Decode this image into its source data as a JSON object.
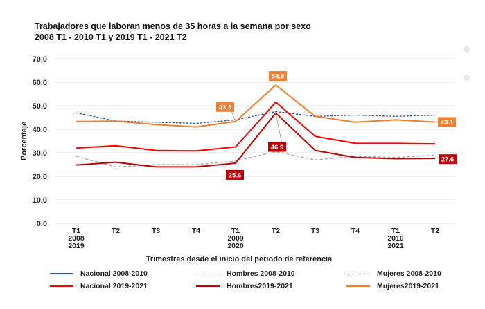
{
  "title_line1": "Trabajadores que laboran menos de 35 horas a la semana por sexo",
  "title_line2": "2008 T1 - 2010 T1 y 2019 T1 - 2021 T2",
  "chart_data": {
    "type": "line",
    "ylabel": "Porcentaje",
    "xlabel": "Trimestres desde el inicio del periodo de referencia",
    "ylim": [
      0,
      70
    ],
    "yticks": [
      "0.0",
      "10.0",
      "20.0",
      "30.0",
      "40.0",
      "50.0",
      "60.0",
      "70.0"
    ],
    "categories": [
      [
        "T1",
        "2008",
        "2019"
      ],
      [
        "T2"
      ],
      [
        "T3"
      ],
      [
        "T4"
      ],
      [
        "T1",
        "2009",
        "2020"
      ],
      [
        "T2"
      ],
      [
        "T3"
      ],
      [
        "T4"
      ],
      [
        "T1",
        "2010",
        "2021"
      ],
      [
        "T2"
      ]
    ],
    "series": [
      {
        "name": "Nacional 2008-2010",
        "color": "#1f4fd8",
        "dash": "solid",
        "values": [
          null,
          null,
          null,
          null,
          null,
          null,
          null,
          null,
          null,
          null
        ]
      },
      {
        "name": "Hombres  2008-2010",
        "color": "#a0a0a0",
        "dash": "dashed",
        "values": [
          28.5,
          24.0,
          25.0,
          25.0,
          26.5,
          30.5,
          27.0,
          28.5,
          28.0,
          29.0
        ]
      },
      {
        "name": "Mujeres 2008-2010",
        "color": "#2f4a8a",
        "dash": "dotted",
        "values": [
          47.0,
          43.5,
          43.0,
          42.5,
          44.0,
          47.5,
          45.5,
          46.0,
          45.5,
          46.0
        ]
      },
      {
        "name": "Nacional 2019-2021",
        "color": "#ff0000",
        "dash": "solid",
        "values": [
          32.0,
          33.0,
          31.0,
          30.8,
          32.5,
          51.5,
          37.0,
          34.0,
          34.0,
          33.8
        ]
      },
      {
        "name": "Hombres2019-2021",
        "color": "#c00000",
        "dash": "solid",
        "values": [
          24.8,
          26.0,
          24.0,
          24.0,
          25.6,
          46.9,
          31.0,
          28.0,
          27.5,
          27.6
        ]
      },
      {
        "name": "Mujeres2019-2021",
        "color": "#f08030",
        "dash": "solid",
        "values": [
          43.3,
          43.5,
          42.0,
          41.0,
          43.3,
          58.8,
          45.5,
          43.0,
          44.0,
          43.1
        ]
      }
    ],
    "annotations": [
      {
        "text": "43.3",
        "series": "Mujeres2019-2021",
        "index": 4,
        "bg": "#f08030"
      },
      {
        "text": "58.8",
        "series": "Mujeres2019-2021",
        "index": 5,
        "bg": "#f08030"
      },
      {
        "text": "43.1",
        "series": "Mujeres2019-2021",
        "index": 9,
        "bg": "#f08030"
      },
      {
        "text": "25.6",
        "series": "Hombres2019-2021",
        "index": 4,
        "bg": "#c00000"
      },
      {
        "text": "46.9",
        "series": "Hombres2019-2021",
        "index": 5,
        "bg": "#c00000"
      },
      {
        "text": "27.6",
        "series": "Hombres2019-2021",
        "index": 9,
        "bg": "#c00000"
      }
    ],
    "legend_placement": "bottom"
  }
}
